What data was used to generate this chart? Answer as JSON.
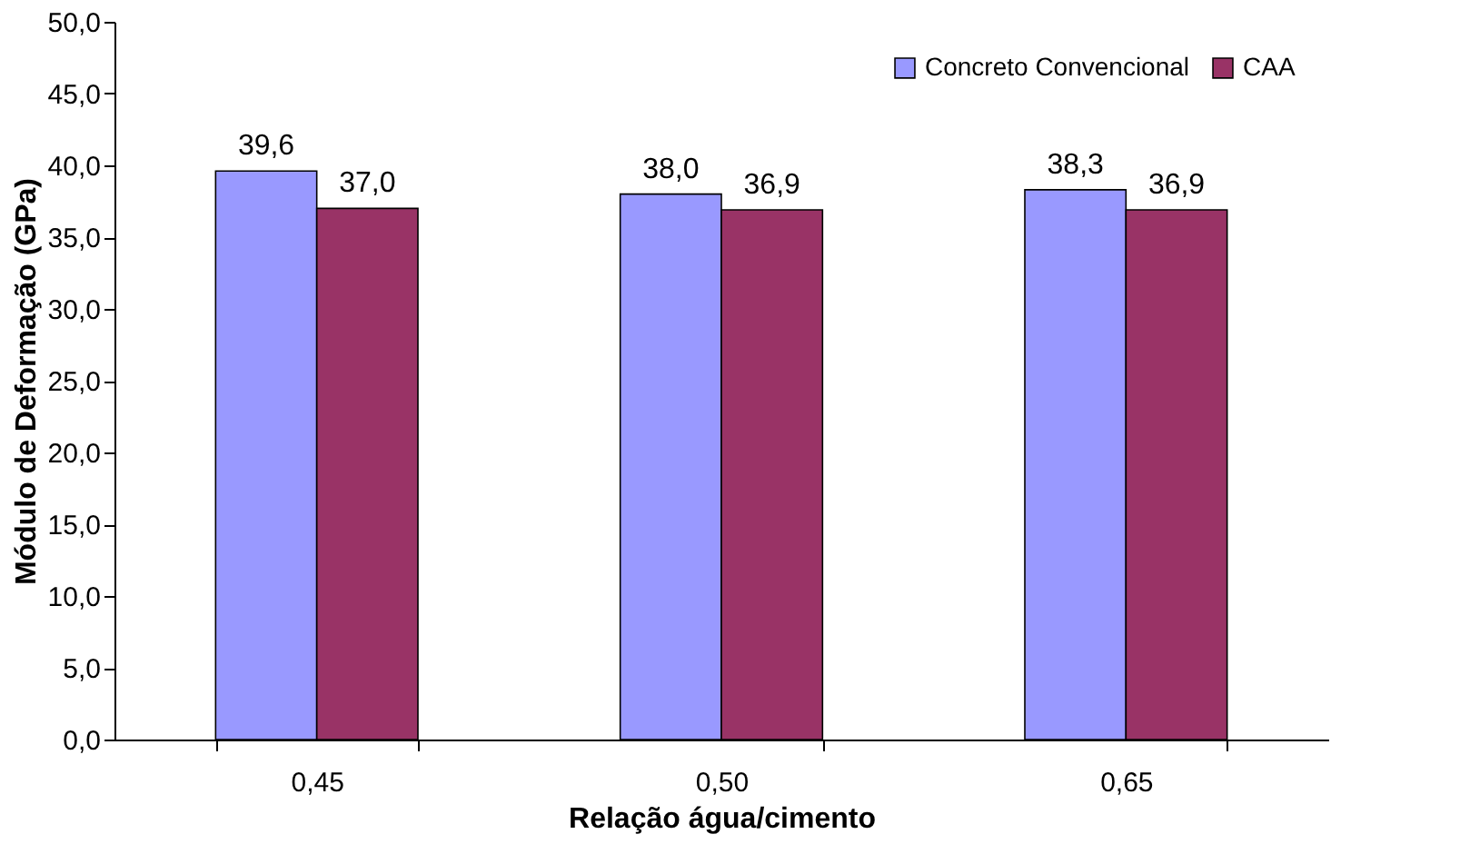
{
  "chart_data": {
    "type": "bar",
    "xlabel": "Relação água/cimento",
    "ylabel": "Módulo de Deformação (GPa)",
    "categories": [
      "0,45",
      "0,50",
      "0,65"
    ],
    "series": [
      {
        "name": "Concreto Convencional",
        "color": "#9999ff",
        "values": [
          39.6,
          38.0,
          38.3
        ],
        "value_labels": [
          "39,6",
          "38,0",
          "38,3"
        ]
      },
      {
        "name": "CAA",
        "color": "#993366",
        "values": [
          37.0,
          36.9,
          36.9
        ],
        "value_labels": [
          "37,0",
          "36,9",
          "36,9"
        ]
      }
    ],
    "ylim": [
      0,
      50
    ],
    "yticks": [
      {
        "value": 0,
        "label": "0,0"
      },
      {
        "value": 5,
        "label": "5,0"
      },
      {
        "value": 10,
        "label": "10,0"
      },
      {
        "value": 15,
        "label": "15,0"
      },
      {
        "value": 20,
        "label": "20,0"
      },
      {
        "value": 25,
        "label": "25,0"
      },
      {
        "value": 30,
        "label": "30,0"
      },
      {
        "value": 35,
        "label": "35,0"
      },
      {
        "value": 40,
        "label": "40,0"
      },
      {
        "value": 45,
        "label": "45,0"
      },
      {
        "value": 50,
        "label": "50,0"
      }
    ],
    "grid": false,
    "legend": "top right"
  }
}
